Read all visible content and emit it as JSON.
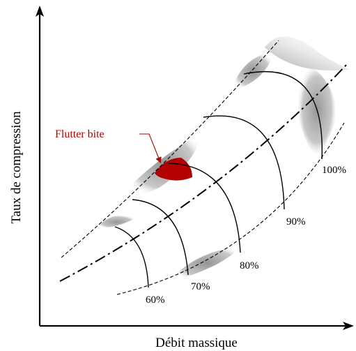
{
  "axes": {
    "x_label": "Débit massique",
    "y_label": "Taux de compression"
  },
  "speed_lines": [
    {
      "label": "60%"
    },
    {
      "label": "70%"
    },
    {
      "label": "80%"
    },
    {
      "label": "90%"
    },
    {
      "label": "100%"
    }
  ],
  "annotation": {
    "text": "Flutter bite",
    "color": "#b00000"
  },
  "colors": {
    "flutter_region": "#b30000",
    "shaded_region": "#9a9a9a",
    "lines": "#000000"
  }
}
